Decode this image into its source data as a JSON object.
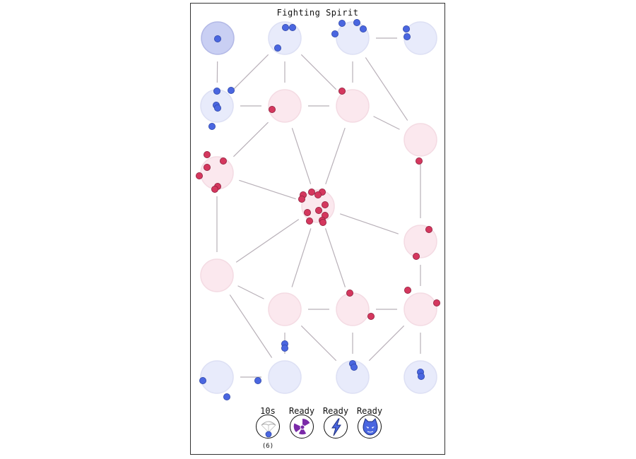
{
  "game": {
    "title": "Fighting Spirit"
  },
  "abilities": [
    {
      "name": "paratroop",
      "icon": "parachute-icon",
      "status": "10s",
      "count": "(6)"
    },
    {
      "name": "nuke",
      "icon": "radiation-icon",
      "status": "Ready"
    },
    {
      "name": "lightning",
      "icon": "lightning-icon",
      "status": "Ready"
    },
    {
      "name": "spirit",
      "icon": "cat-face-icon",
      "status": "Ready"
    }
  ],
  "colors": {
    "blue_unit": "#4a66e0",
    "red_unit": "#d4375e",
    "blue_node": "#e8ebfb",
    "blue_node_home": "#c9cff3",
    "red_node": "#fbe8ee",
    "edge": "#b8b0b8",
    "purple": "#7a2aa8"
  }
}
